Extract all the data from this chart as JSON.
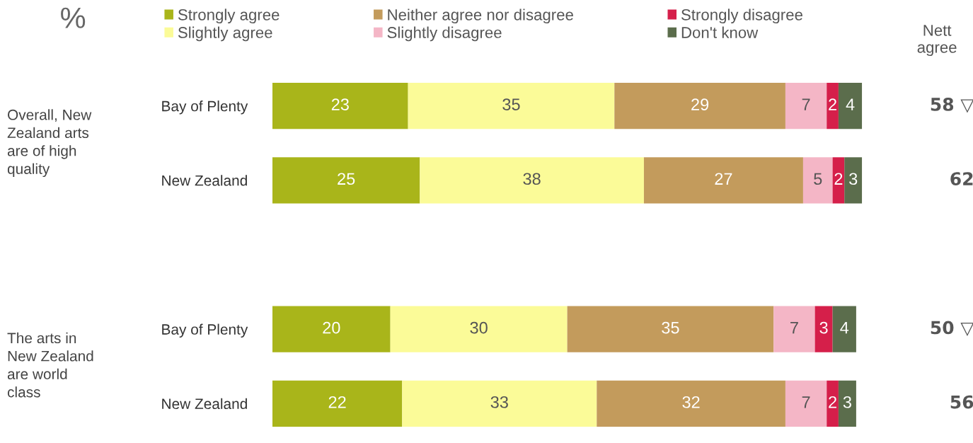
{
  "chart_data": {
    "type": "bar",
    "orientation": "horizontal",
    "stacked": true,
    "title": "%",
    "categories": [
      "Bay of Plenty",
      "New Zealand",
      null,
      "Bay of Plenty",
      "New Zealand"
    ],
    "series": [
      {
        "name": "Strongly agree",
        "color": "#a9b51a",
        "values": [
          23,
          25,
          null,
          20,
          22
        ]
      },
      {
        "name": "Slightly agree",
        "color": "#fbfb98",
        "values": [
          35,
          38,
          null,
          30,
          33
        ]
      },
      {
        "name": "Neither agree nor disagree",
        "color": "#c39b5c",
        "values": [
          29,
          27,
          null,
          35,
          32
        ]
      },
      {
        "name": "Slightly disagree",
        "color": "#f4b6c6",
        "values": [
          7,
          5,
          null,
          7,
          7
        ]
      },
      {
        "name": "Strongly disagree",
        "color": "#d51f4a",
        "values": [
          2,
          2,
          null,
          3,
          2
        ]
      },
      {
        "name": "Don't know",
        "color": "#5b6d4c",
        "values": [
          4,
          3,
          null,
          4,
          3
        ]
      }
    ],
    "xlim": [
      0,
      100
    ],
    "data_labels": true,
    "annotations": [
      "Overall, New\nZealand arts\nare of high\nquality",
      "The arts in\nNew Zealand\nare world\nclass",
      "Nett\nagree",
      "58 ▽",
      "62",
      "50 ▽",
      "56"
    ],
    "legend": "top",
    "tick_labels": "y",
    "grid": false
  }
}
